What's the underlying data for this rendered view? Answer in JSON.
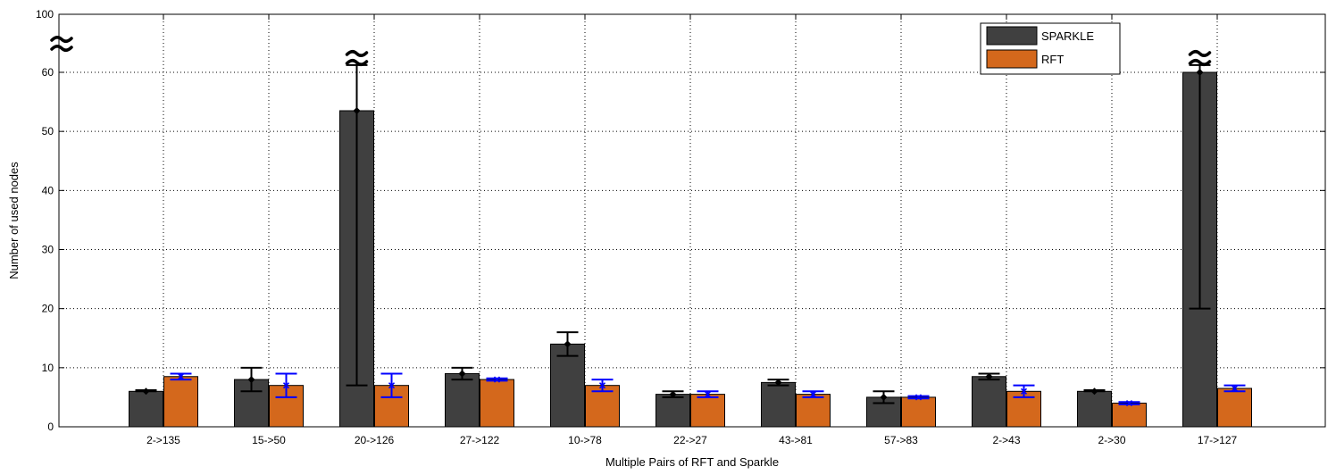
{
  "chart_data": {
    "type": "bar",
    "title": "",
    "xlabel": "Multiple Pairs of RFT and Sparkle",
    "ylabel": "Number of used nodes",
    "ylim": [
      0,
      100
    ],
    "yticks": [
      0,
      10,
      20,
      30,
      40,
      50,
      60,
      100
    ],
    "axis_break": "between 60 and 100",
    "grid": true,
    "legend_position": "top-right",
    "categories": [
      "2->135",
      "15->50",
      "20->126",
      "27->122",
      "10->78",
      "22->27",
      "43->81",
      "57->83",
      "2->43",
      "2->30",
      "17->127"
    ],
    "series": [
      {
        "name": "SPARKLE",
        "color": "#404040",
        "errorbar_color": "#000000",
        "values": [
          6,
          8,
          53.5,
          9,
          14,
          5.5,
          7.5,
          5,
          8.5,
          6,
          60
        ],
        "mean_marker": [
          6,
          8,
          53.5,
          9,
          14,
          5.5,
          7.5,
          5,
          8.5,
          6,
          60
        ],
        "error_low": [
          6,
          6,
          7,
          8,
          12,
          5,
          7,
          4,
          8,
          6,
          20
        ],
        "error_high": [
          6.2,
          10,
          65,
          10,
          16,
          6,
          8,
          6,
          9,
          6.2,
          65
        ],
        "broken": [
          false,
          false,
          true,
          false,
          false,
          false,
          false,
          false,
          false,
          false,
          true
        ]
      },
      {
        "name": "RFT",
        "color": "#d4681c",
        "errorbar_color": "#0000ff",
        "values": [
          8.5,
          7,
          7,
          8,
          7,
          5.5,
          5.5,
          5,
          6,
          4,
          6.5
        ],
        "mean_marker": [
          8.5,
          7,
          7,
          8,
          7,
          5.5,
          5.5,
          5,
          6,
          4,
          6.5
        ],
        "error_low": [
          8,
          5,
          5,
          7.8,
          6,
          5,
          5,
          4.8,
          5,
          3.8,
          6
        ],
        "error_high": [
          9,
          9,
          9,
          8.2,
          8,
          6,
          6,
          5.2,
          7,
          4.2,
          7
        ],
        "broken": [
          false,
          false,
          false,
          false,
          false,
          false,
          false,
          false,
          false,
          false,
          false
        ]
      }
    ]
  }
}
